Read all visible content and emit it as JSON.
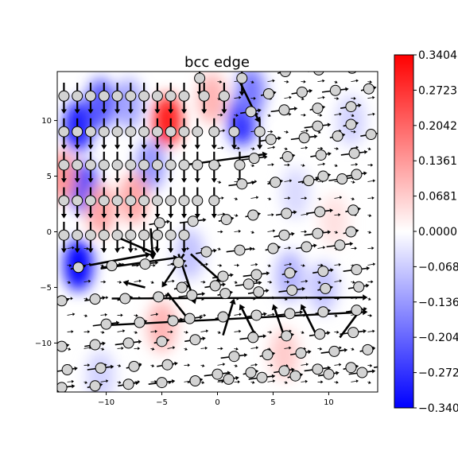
{
  "chart_data": {
    "type": "heatmap",
    "title": "bcc edge",
    "xlabel": "",
    "ylabel": "",
    "xlim": [
      -14.4,
      14.4
    ],
    "ylim": [
      -14.4,
      14.4
    ],
    "x_ticks": [
      -10,
      -5,
      0,
      5,
      10
    ],
    "y_ticks": [
      -10,
      -5,
      0,
      5,
      10
    ],
    "grid": false,
    "colormap": "bwr",
    "colorbar": {
      "range": [
        -0.3404,
        0.3404
      ],
      "tick_labels": [
        "0.3404",
        "0.2723",
        "0.2042",
        "0.1361",
        "0.0681",
        "0.0000",
        "-0.068",
        "-0.136",
        "-0.204",
        "-0.272",
        "-0.340"
      ],
      "tick_values": [
        0.3404,
        0.2723,
        0.2042,
        0.1361,
        0.0681,
        0.0,
        -0.0681,
        -0.1361,
        -0.2042,
        -0.2723,
        -0.3404
      ]
    },
    "field_blobs": [
      {
        "x": -12.5,
        "y": 9.5,
        "value": -0.3
      },
      {
        "x": -12.0,
        "y": 4.0,
        "value": -0.25
      },
      {
        "x": -12.5,
        "y": -3.0,
        "value": -0.34
      },
      {
        "x": -10.5,
        "y": 11.5,
        "value": -0.22
      },
      {
        "x": -8.0,
        "y": 11.5,
        "value": -0.12
      },
      {
        "x": -6.0,
        "y": 6.0,
        "value": -0.14
      },
      {
        "x": 2.2,
        "y": 10.0,
        "value": -0.28
      },
      {
        "x": 3.0,
        "y": 12.5,
        "value": -0.18
      },
      {
        "x": -4.5,
        "y": 10.0,
        "value": 0.3
      },
      {
        "x": -14.0,
        "y": 5.0,
        "value": 0.14
      },
      {
        "x": -10.5,
        "y": 2.0,
        "value": 0.12
      },
      {
        "x": -7.5,
        "y": 3.0,
        "value": 0.12
      },
      {
        "x": -0.5,
        "y": 12.0,
        "value": 0.1
      },
      {
        "x": -5.0,
        "y": -8.5,
        "value": 0.1
      },
      {
        "x": 6.5,
        "y": -4.0,
        "value": -0.1
      },
      {
        "x": 9.5,
        "y": -5.0,
        "value": -0.08
      },
      {
        "x": 12.0,
        "y": 10.0,
        "value": -0.06
      },
      {
        "x": -2.5,
        "y": -2.0,
        "value": -0.08
      },
      {
        "x": 6.0,
        "y": -11.0,
        "value": 0.07
      },
      {
        "x": -10.5,
        "y": -13.0,
        "value": -0.06
      },
      {
        "x": 10.5,
        "y": 1.0,
        "value": 0.04
      },
      {
        "x": 7.0,
        "y": 3.5,
        "value": -0.05
      }
    ],
    "atom_rows_upper": [
      {
        "y": 12.2,
        "xs": [
          -13.8,
          -12.6,
          -11.4,
          -10.2,
          -9.0,
          -7.8,
          -6.6,
          -5.4,
          -4.2,
          -3.0,
          -1.2,
          0.6
        ]
      },
      {
        "y": 9.0,
        "xs": [
          -13.8,
          -12.6,
          -11.4,
          -10.2,
          -9.0,
          -7.8,
          -6.6,
          -5.4,
          -4.2,
          -3.0,
          -1.8,
          -0.3,
          1.5,
          3.8
        ]
      },
      {
        "y": 6.0,
        "xs": [
          -13.8,
          -12.6,
          -11.4,
          -10.2,
          -9.0,
          -7.8,
          -6.6,
          -5.4,
          -4.2,
          -3.0,
          -1.8,
          -0.3,
          2.0
        ]
      },
      {
        "y": 2.8,
        "xs": [
          -13.8,
          -12.6,
          -11.4,
          -10.2,
          -9.0,
          -7.8,
          -6.6,
          -5.4,
          -4.2,
          -3.0,
          -1.8,
          -0.3
        ]
      },
      {
        "y": -0.3,
        "xs": [
          -13.8,
          -12.6,
          -11.4,
          -10.2,
          -9.0,
          -7.8,
          -6.6,
          -5.4,
          -4.2,
          -3.0
        ]
      }
    ],
    "atom_row_tops": [
      {
        "y": 13.8,
        "xs": [
          -1.6,
          2.2
        ]
      }
    ],
    "atom_rows_lower": [
      {
        "y": 14.4,
        "x0": 6.1,
        "dx": 3.0,
        "n": 3
      },
      {
        "y": 12.4,
        "x0": 4.6,
        "dx": 3.0,
        "n": 4
      },
      {
        "y": 10.8,
        "x0": 3.0,
        "dx": 3.0,
        "n": 4
      },
      {
        "y": 9.5,
        "x0": 9.0,
        "dx": 3.0,
        "n": 2
      },
      {
        "y": 8.3,
        "x0": 4.8,
        "dx": 3.0,
        "n": 4
      },
      {
        "y": 6.6,
        "x0": 3.3,
        "dx": 3.0,
        "n": 4
      },
      {
        "y": 5.0,
        "x0": 9.5,
        "dx": 3.0,
        "n": 2
      },
      {
        "y": 4.3,
        "x0": 2.2,
        "dx": 3.0,
        "n": 4
      },
      {
        "y": 1.5,
        "x0": 3.2,
        "dx": 3.0,
        "n": 4
      },
      {
        "y": 0.8,
        "x0": -5.2,
        "dx": 3.0,
        "n": 3
      },
      {
        "y": -0.3,
        "x0": 6.0,
        "dx": 3.0,
        "n": 3
      },
      {
        "y": -1.8,
        "x0": -1.0,
        "dx": 3.0,
        "n": 5
      },
      {
        "y": -3.2,
        "x0": -12.5,
        "dx": 3.0,
        "n": 4
      },
      {
        "y": -4.0,
        "x0": 0.5,
        "dx": 3.0,
        "n": 5
      },
      {
        "y": -5.0,
        "x0": -3.2,
        "dx": 3.0,
        "n": 3
      },
      {
        "y": -6.0,
        "x0": -8.3,
        "dx": 3.0,
        "n": 9
      },
      {
        "y": -6.2,
        "x0": -14.0,
        "dx": 3.0,
        "n": 2
      },
      {
        "y": -7.8,
        "x0": -2.5,
        "dx": 3.0,
        "n": 6
      },
      {
        "y": -8.3,
        "x0": -10.0,
        "dx": 3.0,
        "n": 3
      },
      {
        "y": -9.5,
        "x0": 3.2,
        "dx": 3.0,
        "n": 4
      },
      {
        "y": -10.3,
        "x0": -14.0,
        "dx": 3.0,
        "n": 5
      },
      {
        "y": -11.2,
        "x0": 1.5,
        "dx": 3.0,
        "n": 5
      },
      {
        "y": -12.4,
        "x0": -13.5,
        "dx": 3.0,
        "n": 4
      },
      {
        "y": -12.8,
        "x0": 0.0,
        "dx": 3.0,
        "n": 6
      },
      {
        "y": -14.0,
        "x0": -14.0,
        "dx": 3.0,
        "n": 10
      }
    ],
    "vector_field": "arrows along dislocation glide lines and down columns above the slip plane"
  }
}
